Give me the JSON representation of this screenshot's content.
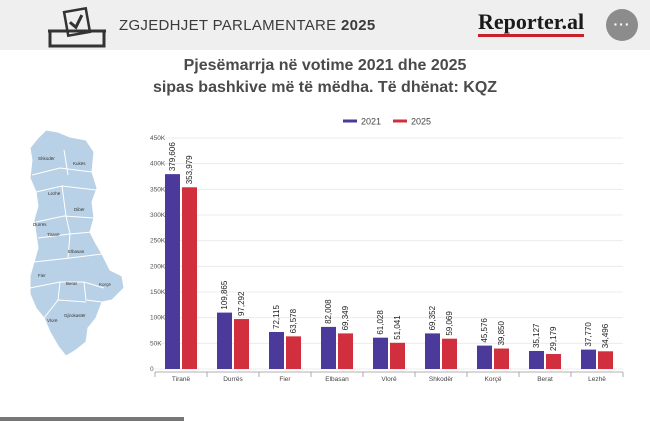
{
  "header": {
    "section_title": "ZGJEDHJET PARLAMENTARE",
    "section_year": "2025",
    "logo_text": "Reporter.al",
    "more_label": "···",
    "ballot_icon": "ballot-box-icon"
  },
  "map": {
    "labels": [
      "Shkodër",
      "Kukës",
      "Lezhë",
      "Dibër",
      "Durrës",
      "Tiranë",
      "Elbasan",
      "Fier",
      "Berat",
      "Korçë",
      "Gjirokastër",
      "Vlorë"
    ]
  },
  "chart_data": {
    "type": "bar",
    "title_line1": "Pjesëmarrja në votime 2021 dhe 2025",
    "title_line2": "sipas bashkive më të mëdha. Të dhënat: KQZ",
    "categories": [
      "Tiranë",
      "Durrës",
      "Fier",
      "Elbasan",
      "Vlorë",
      "Shkodër",
      "Korçë",
      "Berat",
      "Lezhë"
    ],
    "series": [
      {
        "name": "2021",
        "color": "#4b3a9a",
        "values": [
          379606,
          109865,
          72115,
          82008,
          61028,
          69352,
          45576,
          35127,
          37770
        ],
        "labels": [
          "379,606",
          "109,865",
          "72,115",
          "82,008",
          "61,028",
          "69,352",
          "45,576",
          "35,127",
          "37,770"
        ]
      },
      {
        "name": "2025",
        "color": "#d12e3e",
        "values": [
          353979,
          97292,
          63578,
          69349,
          51041,
          59069,
          39850,
          29179,
          34496
        ],
        "labels": [
          "353,979",
          "97,292",
          "63,578",
          "69,349",
          "51,041",
          "59,069",
          "39,850",
          "29,179",
          "34,496"
        ]
      }
    ],
    "yticks": [
      0,
      50000,
      100000,
      150000,
      200000,
      250000,
      300000,
      350000,
      400000,
      450000
    ],
    "ytick_labels": [
      "0",
      "50K",
      "100K",
      "150K",
      "200K",
      "250K",
      "300K",
      "350K",
      "400K",
      "450K"
    ],
    "ylim": [
      0,
      450000
    ],
    "legend_position": "top-center"
  }
}
